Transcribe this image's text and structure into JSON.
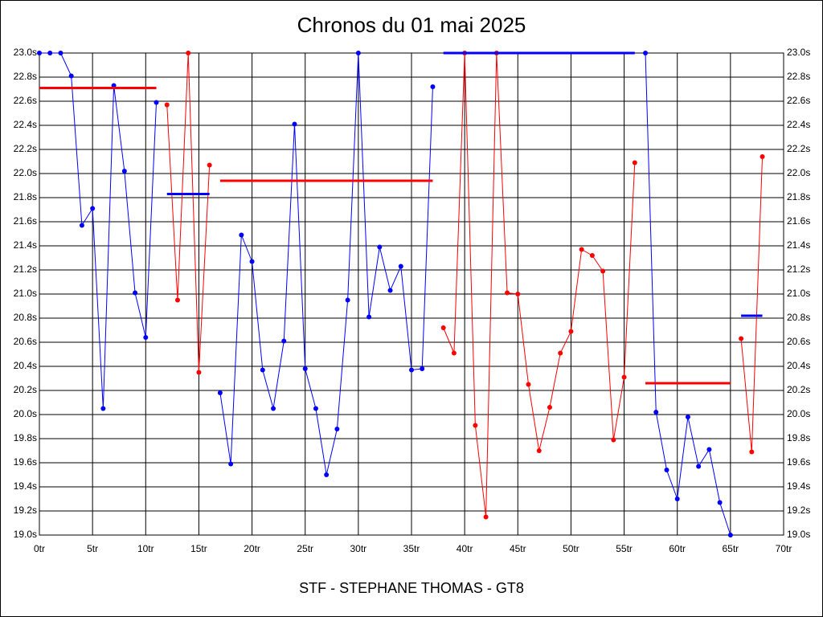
{
  "chart_data": {
    "type": "line",
    "title": "Chronos du 01 mai 2025",
    "xlabel": "STF - STEPHANE THOMAS - GT8",
    "x": [
      0,
      1,
      2,
      3,
      4,
      5,
      6,
      7,
      8,
      9,
      10,
      11,
      12,
      13,
      14,
      15,
      16,
      17,
      18,
      19,
      20,
      21,
      22,
      23,
      24,
      25,
      26,
      27,
      28,
      29,
      30,
      31,
      32,
      33,
      34,
      35,
      36,
      37,
      38,
      39,
      40,
      41,
      42,
      43,
      44,
      45,
      46,
      47,
      48,
      49,
      50,
      51,
      52,
      53,
      54,
      55,
      56,
      57,
      58,
      59,
      60,
      61,
      62,
      63,
      64,
      65,
      66,
      67,
      68
    ],
    "series": [
      {
        "color": "#0000ff",
        "values": [
          23,
          23,
          23,
          22.81,
          21.57,
          21.71,
          20.05,
          22.73,
          22.02,
          21.01,
          20.64,
          22.59,
          null,
          null,
          null,
          null,
          null,
          20.18,
          19.59,
          21.49,
          21.27,
          20.37,
          20.05,
          20.61,
          22.41,
          20.38,
          20.05,
          19.5,
          19.88,
          20.95,
          23,
          20.81,
          21.39,
          21.03,
          21.23,
          20.37,
          20.38,
          22.72,
          null,
          null,
          null,
          null,
          null,
          null,
          null,
          null,
          null,
          null,
          null,
          null,
          null,
          null,
          null,
          null,
          null,
          null,
          null,
          23,
          20.02,
          19.54,
          19.3,
          19.98,
          19.57,
          19.71,
          19.27,
          19,
          null,
          null,
          null
        ]
      },
      {
        "color": "#ff0000",
        "values": [
          null,
          null,
          null,
          null,
          null,
          null,
          null,
          null,
          null,
          null,
          null,
          null,
          22.57,
          20.95,
          23,
          20.35,
          22.07,
          null,
          null,
          null,
          null,
          null,
          null,
          null,
          null,
          null,
          null,
          null,
          null,
          null,
          null,
          null,
          null,
          null,
          null,
          null,
          null,
          null,
          20.72,
          20.51,
          23,
          19.91,
          19.15,
          23,
          21.01,
          21.0,
          20.25,
          19.7,
          20.06,
          20.51,
          20.69,
          21.37,
          21.32,
          21.19,
          19.79,
          20.31,
          22.09,
          null,
          null,
          null,
          null,
          null,
          null,
          null,
          null,
          null,
          20.63,
          19.69,
          22.14
        ]
      }
    ],
    "averages": [
      {
        "color": "#ff0000",
        "x": [
          0,
          11
        ],
        "value": 22.71
      },
      {
        "color": "#0000ff",
        "x": [
          12,
          16
        ],
        "value": 21.83
      },
      {
        "color": "#ff0000",
        "x": [
          17,
          37
        ],
        "value": 21.94
      },
      {
        "color": "#0000ff",
        "x": [
          38,
          56
        ],
        "value": 23.0
      },
      {
        "color": "#ff0000",
        "x": [
          57,
          65
        ],
        "value": 20.26
      },
      {
        "color": "#0000ff",
        "x": [
          66,
          68
        ],
        "value": 20.82
      }
    ],
    "xlim": [
      0,
      70
    ],
    "xticks": [
      {
        "value": 0,
        "label": "0tr"
      },
      {
        "value": 5,
        "label": "5tr"
      },
      {
        "value": 10,
        "label": "10tr"
      },
      {
        "value": 15,
        "label": "15tr"
      },
      {
        "value": 20,
        "label": "20tr"
      },
      {
        "value": 25,
        "label": "25tr"
      },
      {
        "value": 30,
        "label": "30tr"
      },
      {
        "value": 35,
        "label": "35tr"
      },
      {
        "value": 40,
        "label": "40tr"
      },
      {
        "value": 45,
        "label": "45tr"
      },
      {
        "value": 50,
        "label": "50tr"
      },
      {
        "value": 55,
        "label": "55tr"
      },
      {
        "value": 60,
        "label": "60tr"
      },
      {
        "value": 65,
        "label": "65tr"
      },
      {
        "value": 70,
        "label": "70tr"
      }
    ],
    "ylim": [
      19,
      23
    ],
    "yticks": [
      {
        "value": 19,
        "label": "19.0s"
      },
      {
        "value": 19.2,
        "label": "19.2s"
      },
      {
        "value": 19.4,
        "label": "19.4s"
      },
      {
        "value": 19.6,
        "label": "19.6s"
      },
      {
        "value": 19.8,
        "label": "19.8s"
      },
      {
        "value": 20,
        "label": "20.0s"
      },
      {
        "value": 20.2,
        "label": "20.2s"
      },
      {
        "value": 20.4,
        "label": "20.4s"
      },
      {
        "value": 20.6,
        "label": "20.6s"
      },
      {
        "value": 20.8,
        "label": "20.8s"
      },
      {
        "value": 21,
        "label": "21.0s"
      },
      {
        "value": 21.2,
        "label": "21.2s"
      },
      {
        "value": 21.4,
        "label": "21.4s"
      },
      {
        "value": 21.6,
        "label": "21.6s"
      },
      {
        "value": 21.8,
        "label": "21.8s"
      },
      {
        "value": 22,
        "label": "22.0s"
      },
      {
        "value": 22.2,
        "label": "22.2s"
      },
      {
        "value": 22.4,
        "label": "22.4s"
      },
      {
        "value": 22.6,
        "label": "22.6s"
      },
      {
        "value": 22.8,
        "label": "22.8s"
      },
      {
        "value": 23,
        "label": "23.0s"
      }
    ],
    "grid": true
  }
}
